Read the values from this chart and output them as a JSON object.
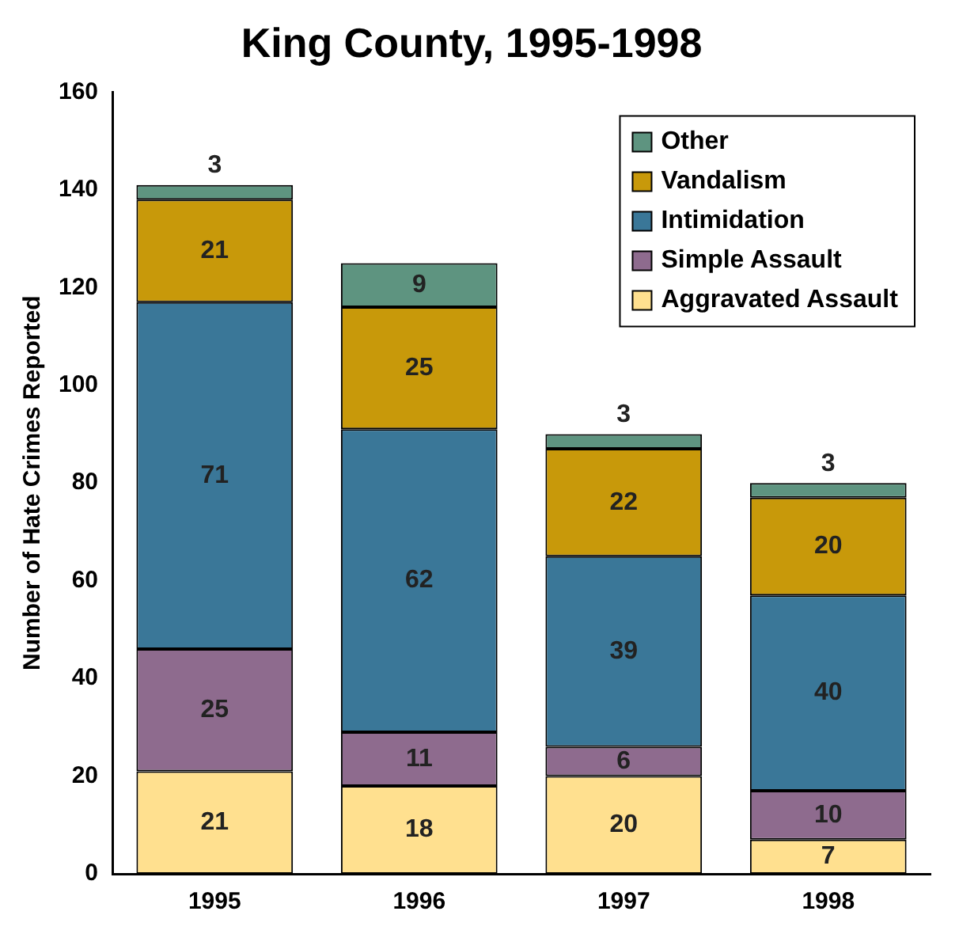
{
  "chart_data": {
    "type": "bar",
    "title": "King County, 1995-1998",
    "ylabel": "Number of Hate Crimes Reported",
    "categories": [
      "1995",
      "1996",
      "1997",
      "1998"
    ],
    "stacked": true,
    "data_labels": true,
    "legend": "top right",
    "grid": false,
    "ylim": [
      0,
      160
    ],
    "yticks": [
      0,
      20,
      40,
      60,
      80,
      100,
      120,
      140,
      160
    ],
    "series": [
      {
        "name": "Aggravated Assault",
        "color": "#ffe08f",
        "values": [
          21,
          18,
          20,
          7
        ]
      },
      {
        "name": "Simple Assault",
        "color": "#8e6b8e",
        "values": [
          25,
          11,
          6,
          10
        ]
      },
      {
        "name": "Intimidation",
        "color": "#3a7798",
        "values": [
          71,
          62,
          39,
          40
        ]
      },
      {
        "name": "Vandalism",
        "color": "#c8990a",
        "values": [
          21,
          25,
          22,
          20
        ]
      },
      {
        "name": "Other",
        "color": "#5e9480",
        "values": [
          3,
          9,
          3,
          3
        ]
      }
    ]
  }
}
